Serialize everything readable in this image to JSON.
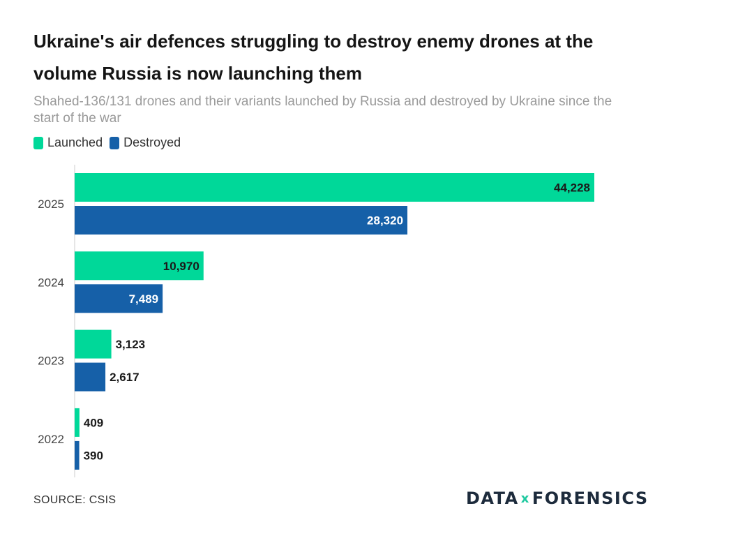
{
  "title": "Ukraine's air defences struggling to destroy enemy drones at the volume Russia is now launching them",
  "subtitle": "Shahed-136/131 drones and their variants launched by Russia and destroyed by Ukraine since the start of the war",
  "legend": {
    "launched": "Launched",
    "destroyed": "Destroyed"
  },
  "source": "SOURCE: CSIS",
  "brand": {
    "left": "DATA",
    "mark": "x",
    "right": "FORENSICS"
  },
  "colors": {
    "launched": "#00d899",
    "destroyed": "#1660a8",
    "axis": "#cccccc"
  },
  "chart_data": {
    "type": "bar",
    "orientation": "horizontal",
    "categories": [
      "2025",
      "2024",
      "2023",
      "2022"
    ],
    "series": [
      {
        "name": "Launched",
        "values": [
          44228,
          10970,
          3123,
          409
        ],
        "labels": [
          "44,228",
          "10,970",
          "3,123",
          "409"
        ]
      },
      {
        "name": "Destroyed",
        "values": [
          28320,
          7489,
          2617,
          390
        ],
        "labels": [
          "28,320",
          "7,489",
          "2,617",
          "390"
        ]
      }
    ],
    "xlim": [
      0,
      44228
    ],
    "title": "Ukraine's air defences struggling to destroy enemy drones at the volume Russia is now launching them",
    "xlabel": "",
    "ylabel": ""
  }
}
